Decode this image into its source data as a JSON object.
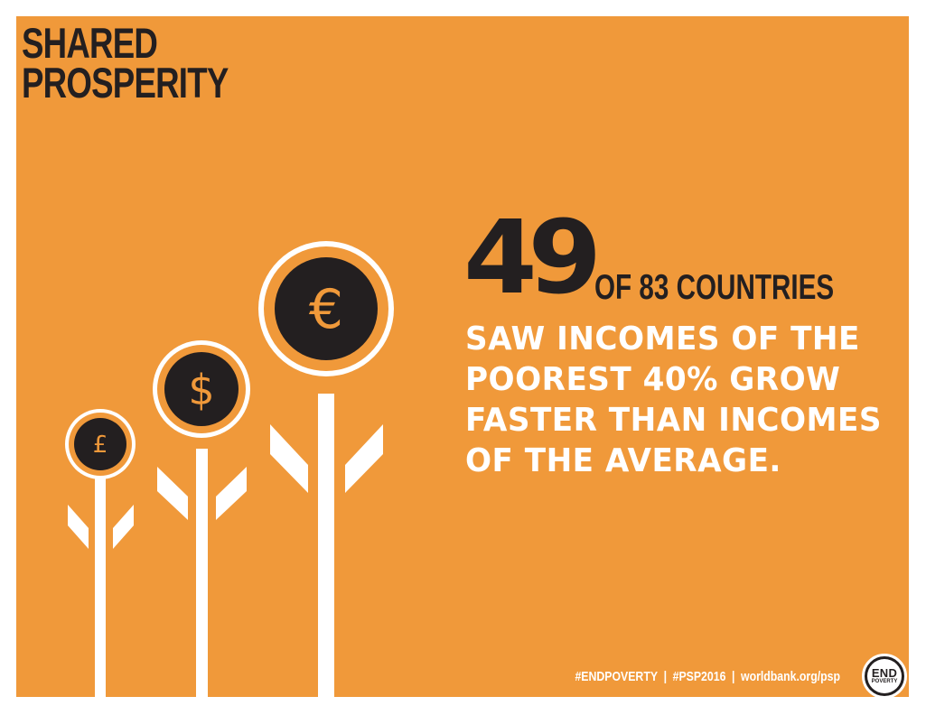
{
  "title": {
    "line1": "SHARED",
    "line2": "PROSPERITY"
  },
  "stat": {
    "number": "49",
    "suffix": "OF 83 COUNTRIES",
    "lines": [
      "SAW INCOMES OF THE",
      "POOREST 40% GROW",
      "FASTER THAN INCOMES",
      "OF THE AVERAGE."
    ]
  },
  "flowers": {
    "small_symbol": "£",
    "medium_symbol": "$",
    "large_symbol": "€"
  },
  "footer": {
    "hashtag1": "#ENDPOVERTY",
    "separator": "|",
    "hashtag2": "#PSP2016",
    "url": "worldbank.org/psp"
  },
  "logo": {
    "line1": "END",
    "line2": "POVERTY"
  },
  "colors": {
    "background": "#f0993a",
    "dark": "#231f20",
    "light": "#ffffff"
  }
}
